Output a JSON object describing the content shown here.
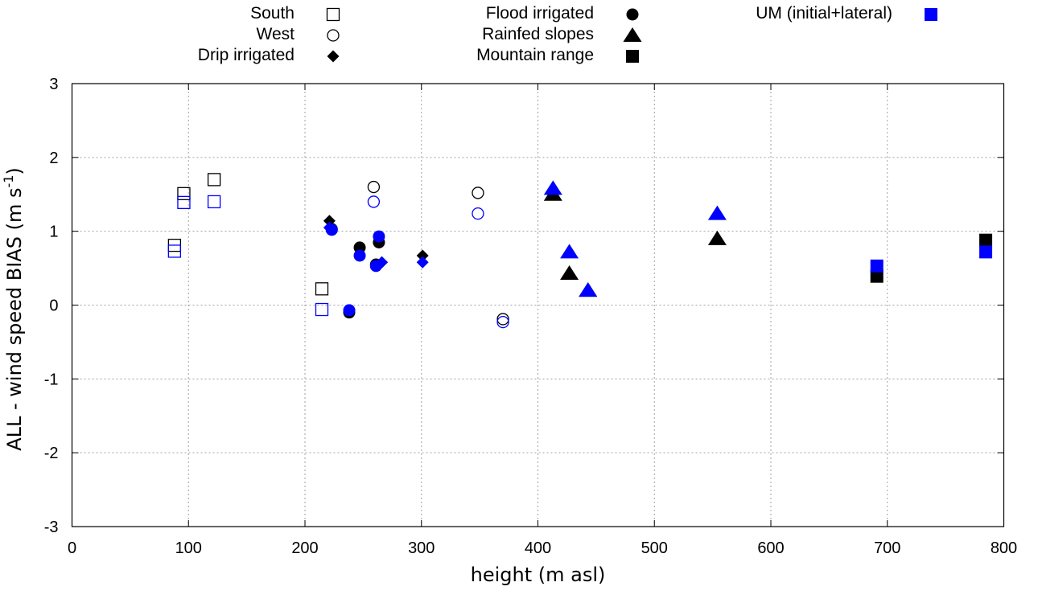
{
  "chart_data": {
    "type": "scatter",
    "title": "",
    "xlabel": "height (m asl)",
    "ylabel_main": "ALL - wind speed BIAS (m s",
    "ylabel_sup": "-1",
    "ylabel_end": ")",
    "xlim": [
      0,
      800
    ],
    "ylim": [
      -3,
      3
    ],
    "xticks": [
      0,
      100,
      200,
      300,
      400,
      500,
      600,
      700,
      800
    ],
    "yticks": [
      -3,
      -2,
      -1,
      0,
      1,
      2,
      3
    ],
    "xtick_labels": [
      "0",
      "100",
      "200",
      "300",
      "400",
      "500",
      "600",
      "700",
      "800"
    ],
    "ytick_labels": [
      "-3",
      "-2",
      "-1",
      "0",
      "1",
      "2",
      "3"
    ],
    "grid": true,
    "legend_placement": "top",
    "legend": [
      {
        "label": "South",
        "marker": "open-square",
        "color": "#000000"
      },
      {
        "label": "West",
        "marker": "open-circle",
        "color": "#000000"
      },
      {
        "label": "Drip irrigated",
        "marker": "filled-diamond",
        "color": "#000000"
      },
      {
        "label": "Flood irrigated",
        "marker": "filled-circle",
        "color": "#000000"
      },
      {
        "label": "Rainfed slopes",
        "marker": "filled-triangle",
        "color": "#000000"
      },
      {
        "label": "Mountain range",
        "marker": "filled-square",
        "color": "#000000"
      },
      {
        "label": "UM (initial+lateral)",
        "marker": "filled-square",
        "color": "#0000ff"
      }
    ],
    "colors": {
      "reference": "#000000",
      "um": "#0000ff",
      "grid": "#a0a0a0"
    },
    "series": [
      {
        "name": "South",
        "variant": "reference",
        "marker": "open-square",
        "color": "#000000",
        "points": [
          [
            88,
            0.81
          ],
          [
            96,
            1.51
          ],
          [
            122,
            1.7
          ],
          [
            214.5,
            0.22
          ]
        ]
      },
      {
        "name": "South",
        "variant": "UM",
        "marker": "open-square",
        "color": "#0000ff",
        "points": [
          [
            88,
            0.73
          ],
          [
            96,
            1.39
          ],
          [
            122,
            1.4
          ],
          [
            214.5,
            -0.06
          ]
        ]
      },
      {
        "name": "West",
        "variant": "reference",
        "marker": "open-circle",
        "color": "#000000",
        "points": [
          [
            259,
            1.6
          ],
          [
            348.5,
            1.52
          ],
          [
            370,
            -0.19
          ]
        ]
      },
      {
        "name": "West",
        "variant": "UM",
        "marker": "open-circle",
        "color": "#0000ff",
        "points": [
          [
            259,
            1.4
          ],
          [
            348.5,
            1.24
          ],
          [
            370,
            -0.23
          ]
        ]
      },
      {
        "name": "Drip irrigated",
        "variant": "reference",
        "marker": "filled-diamond",
        "color": "#000000",
        "points": [
          [
            221,
            1.14
          ],
          [
            266,
            0.58
          ],
          [
            301,
            0.67
          ]
        ]
      },
      {
        "name": "Flood irrigated",
        "variant": "reference",
        "marker": "filled-circle",
        "color": "#000000",
        "points": [
          [
            223,
            1.03
          ],
          [
            238,
            -0.1
          ],
          [
            247,
            0.78
          ],
          [
            263.5,
            0.85
          ],
          [
            261,
            0.55
          ]
        ]
      },
      {
        "name": "Rainfed slopes",
        "variant": "reference",
        "marker": "filled-triangle",
        "color": "#000000",
        "points": [
          [
            413,
            1.5
          ],
          [
            427,
            0.43
          ],
          [
            443,
            0.2
          ],
          [
            554,
            0.9
          ]
        ]
      },
      {
        "name": "Mountain range",
        "variant": "reference",
        "marker": "filled-square",
        "color": "#000000",
        "points": [
          [
            691,
            0.39
          ],
          [
            784.5,
            0.88
          ]
        ]
      },
      {
        "name": "Drip irrigated",
        "variant": "UM",
        "marker": "filled-diamond",
        "color": "#0000ff",
        "points": [
          [
            221,
            1.05
          ],
          [
            266,
            0.58
          ],
          [
            301,
            0.58
          ]
        ]
      },
      {
        "name": "Flood irrigated",
        "variant": "UM",
        "marker": "filled-circle",
        "color": "#0000ff",
        "points": [
          [
            223,
            1.02
          ],
          [
            238,
            -0.07
          ],
          [
            247,
            0.67
          ],
          [
            263.5,
            0.93
          ],
          [
            261,
            0.53
          ]
        ]
      },
      {
        "name": "Rainfed slopes",
        "variant": "UM",
        "marker": "filled-triangle",
        "color": "#0000ff",
        "points": [
          [
            413,
            1.58
          ],
          [
            427,
            0.72
          ],
          [
            443,
            0.2
          ],
          [
            554,
            1.24
          ]
        ]
      },
      {
        "name": "Mountain range",
        "variant": "UM",
        "marker": "filled-square",
        "color": "#0000ff",
        "points": [
          [
            691,
            0.53
          ],
          [
            784.5,
            0.72
          ]
        ]
      }
    ]
  }
}
